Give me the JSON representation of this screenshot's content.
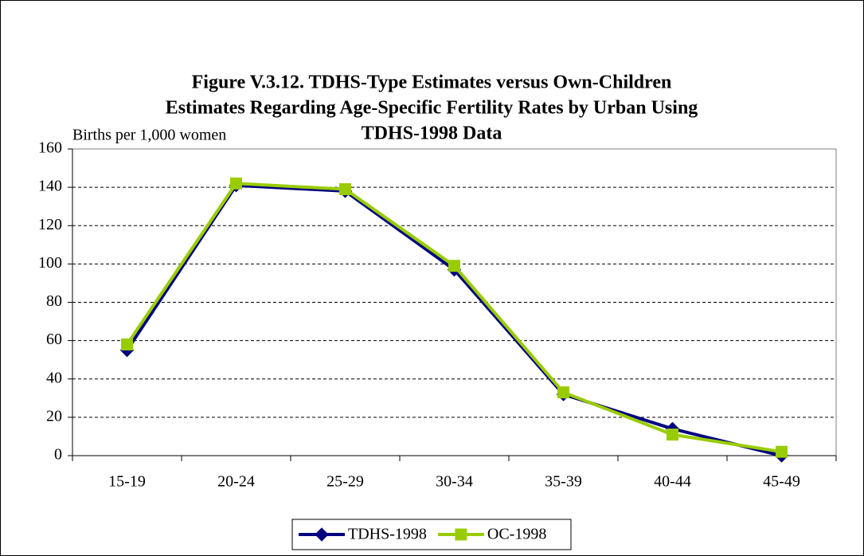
{
  "chart_data": {
    "type": "line",
    "title": [
      "Figure V.3.12. TDHS-Type Estimates versus Own-Children",
      "Estimates Regarding Age-Specific Fertility Rates by Urban Using",
      "TDHS-1998 Data"
    ],
    "y_label": "Births per 1,000 women",
    "categories": [
      "15-19",
      "20-24",
      "25-29",
      "30-34",
      "35-39",
      "40-44",
      "45-49"
    ],
    "series": [
      {
        "name": "TDHS-1998",
        "color": "#000080",
        "marker": "diamond",
        "values": [
          55,
          141,
          138,
          97,
          32,
          14,
          0
        ]
      },
      {
        "name": "OC-1998",
        "color": "#99cc00",
        "marker": "square",
        "values": [
          58,
          142,
          139,
          99,
          33,
          11,
          2
        ]
      }
    ],
    "ylim": [
      0,
      160
    ],
    "yticks": [
      0,
      20,
      40,
      60,
      80,
      100,
      120,
      140,
      160
    ],
    "grid": true,
    "legend": "bottom"
  }
}
